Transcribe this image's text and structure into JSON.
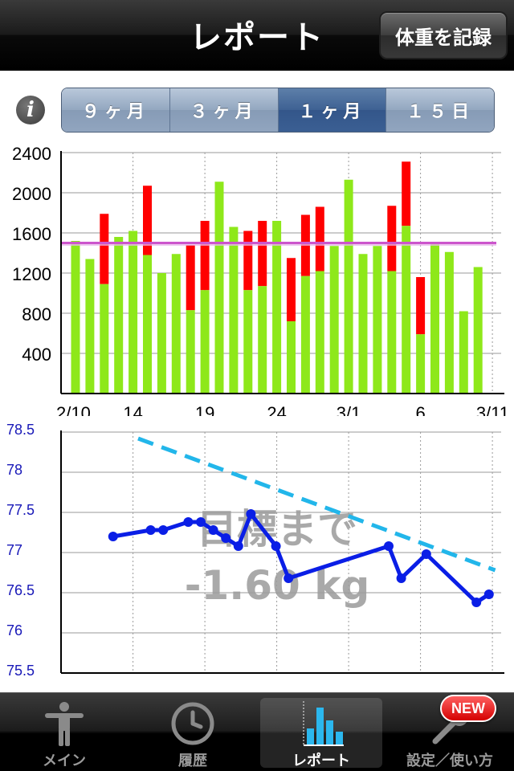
{
  "header": {
    "title": "レポート",
    "record_button": "体重を記録"
  },
  "period_tabs": {
    "options": [
      "９ヶ月",
      "３ヶ月",
      "１ヶ月",
      "１５日"
    ],
    "selected_index": 2
  },
  "icons": {
    "info": "info-icon"
  },
  "colors": {
    "bar_green": "#8ee81a",
    "bar_red": "#ff0000",
    "target_line": "#cc55cc",
    "weight_line": "#0a1ee6",
    "trend_line": "#22b6ea"
  },
  "overlay": {
    "line1": "目標まで",
    "line2": "-1.60 kg"
  },
  "chart_data": [
    {
      "type": "bar",
      "y_ticks": [
        "2400",
        "2000",
        "1600",
        "1200",
        "800",
        "400"
      ],
      "ylim": [
        0,
        2400
      ],
      "x_labels": [
        {
          "day": 0,
          "text": "2/10"
        },
        {
          "day": 4,
          "text": "14"
        },
        {
          "day": 9,
          "text": "19"
        },
        {
          "day": 14,
          "text": "24"
        },
        {
          "day": 19,
          "text": "3/1"
        },
        {
          "day": 24,
          "text": "6"
        },
        {
          "day": 29,
          "text": "3/11"
        }
      ],
      "target": 1500,
      "bars": [
        {
          "day": 0,
          "green": 1520,
          "red": 0
        },
        {
          "day": 1,
          "green": 1340,
          "red": 0
        },
        {
          "day": 2,
          "green": 1090,
          "red": 1790
        },
        {
          "day": 3,
          "green": 1560,
          "red": 0
        },
        {
          "day": 4,
          "green": 1620,
          "red": 0
        },
        {
          "day": 5,
          "green": 1380,
          "red": 2070
        },
        {
          "day": 6,
          "green": 1200,
          "red": 0
        },
        {
          "day": 7,
          "green": 1390,
          "red": 0
        },
        {
          "day": 8,
          "green": 830,
          "red": 1480
        },
        {
          "day": 9,
          "green": 1030,
          "red": 1720
        },
        {
          "day": 10,
          "green": 2110,
          "red": 0
        },
        {
          "day": 11,
          "green": 1660,
          "red": 0
        },
        {
          "day": 12,
          "green": 1030,
          "red": 1620
        },
        {
          "day": 13,
          "green": 1070,
          "red": 1720
        },
        {
          "day": 14,
          "green": 1720,
          "red": 0
        },
        {
          "day": 15,
          "green": 720,
          "red": 1350
        },
        {
          "day": 16,
          "green": 1170,
          "red": 1780
        },
        {
          "day": 17,
          "green": 1220,
          "red": 1860
        },
        {
          "day": 18,
          "green": 1470,
          "red": 0
        },
        {
          "day": 19,
          "green": 2130,
          "red": 0
        },
        {
          "day": 20,
          "green": 1390,
          "red": 0
        },
        {
          "day": 21,
          "green": 1470,
          "red": 0
        },
        {
          "day": 22,
          "green": 1220,
          "red": 1870
        },
        {
          "day": 23,
          "green": 1670,
          "red": 2310
        },
        {
          "day": 24,
          "green": 590,
          "red": 1160
        },
        {
          "day": 25,
          "green": 1490,
          "red": 0
        },
        {
          "day": 26,
          "green": 1410,
          "red": 0
        },
        {
          "day": 27,
          "green": 820,
          "red": 0
        },
        {
          "day": 28,
          "green": 1260,
          "red": 0
        }
      ]
    },
    {
      "type": "line",
      "y_ticks": [
        "78.5",
        "78",
        "77.5",
        "77",
        "76.5",
        "76",
        "75.5"
      ],
      "ylim": [
        75.5,
        78.5
      ],
      "series": [
        {
          "kind": "weight",
          "points": [
            {
              "day": 3,
              "value": 77.2
            },
            {
              "day": 6,
              "value": 77.28
            },
            {
              "day": 7,
              "value": 77.28
            },
            {
              "day": 9,
              "value": 77.38
            },
            {
              "day": 10,
              "value": 77.38
            },
            {
              "day": 11,
              "value": 77.28
            },
            {
              "day": 12,
              "value": 77.18
            },
            {
              "day": 13,
              "value": 77.08
            },
            {
              "day": 14,
              "value": 77.48
            },
            {
              "day": 16,
              "value": 77.08
            },
            {
              "day": 17,
              "value": 76.68
            },
            {
              "day": 25,
              "value": 77.08
            },
            {
              "day": 26,
              "value": 76.68
            },
            {
              "day": 28,
              "value": 76.98
            },
            {
              "day": 32,
              "value": 76.38
            },
            {
              "day": 33,
              "value": 76.48
            }
          ]
        },
        {
          "kind": "trend",
          "points": [
            {
              "day": 5,
              "value": 78.42
            },
            {
              "day": 33.5,
              "value": 76.78
            }
          ]
        }
      ]
    }
  ],
  "tabbar": {
    "items": [
      {
        "label": "メイン",
        "icon": "person-icon"
      },
      {
        "label": "履歴",
        "icon": "clock-icon"
      },
      {
        "label": "レポート",
        "icon": "bar-chart-icon"
      },
      {
        "label": "設定／使い方",
        "icon": "wrench-icon"
      }
    ],
    "active_index": 2,
    "new_badge": "NEW"
  }
}
